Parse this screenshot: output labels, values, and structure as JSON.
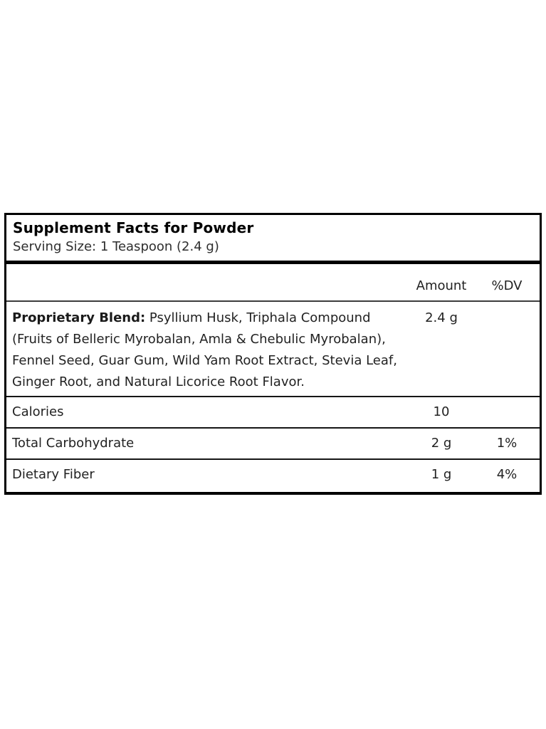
{
  "panel": {
    "title": "Supplement Facts for Powder",
    "serving_size": "Serving Size: 1 Teaspoon (2.4 g)",
    "columns": {
      "amount": "Amount",
      "dv": "%DV"
    },
    "blend_row": {
      "name_bold": "Proprietary Blend:",
      "name_rest": " Psyllium Husk, Triphala Compound (Fruits of Belleric Myrobalan, Amla & Chebulic Myrobalan), Fennel Seed, Guar Gum, Wild Yam Root Extract, Stevia Leaf, Ginger Root, and Natural Licorice Root Flavor.",
      "amount": "2.4 g",
      "dv": ""
    },
    "rows": [
      {
        "name": "Calories",
        "amount": "10",
        "dv": ""
      },
      {
        "name": "Total Carbohydrate",
        "amount": "2 g",
        "dv": "1%"
      },
      {
        "name": "Dietary Fiber",
        "amount": "1 g",
        "dv": "4%"
      }
    ],
    "colors": {
      "border": "#000000",
      "title_text": "#000000",
      "body_text": "#222222",
      "background": "#ffffff"
    }
  }
}
